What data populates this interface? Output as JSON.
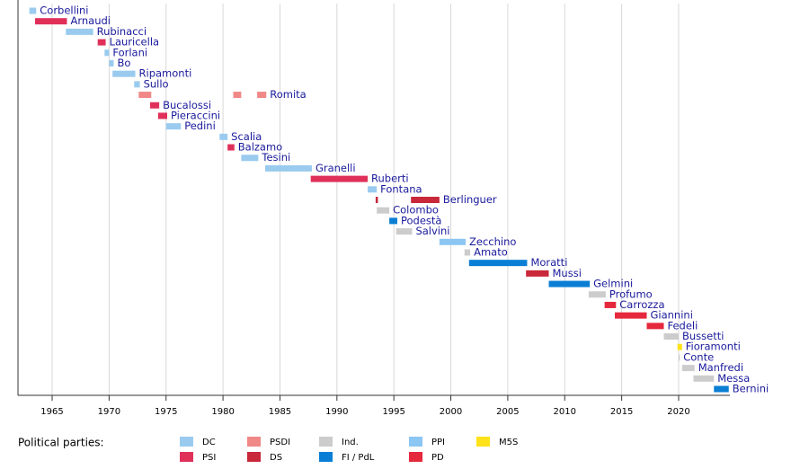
{
  "chart_data": {
    "type": "timeline",
    "xlim": [
      1962,
      2024.5
    ],
    "xticks": [
      1965,
      1970,
      1975,
      1980,
      1985,
      1990,
      1995,
      2000,
      2005,
      2010,
      2015,
      2020
    ],
    "grid": true,
    "legend_title": "Political parties:",
    "parties": [
      {
        "name": "DC",
        "color": "#9acbef"
      },
      {
        "name": "PSI",
        "color": "#e0305a"
      },
      {
        "name": "PSDI",
        "color": "#f08888"
      },
      {
        "name": "DS",
        "color": "#c8283a"
      },
      {
        "name": "Ind.",
        "color": "#cccccc"
      },
      {
        "name": "FI / PdL",
        "color": "#0a7ed4"
      },
      {
        "name": "PPI",
        "color": "#8cc6f2"
      },
      {
        "name": "PD",
        "color": "#e6283c"
      },
      {
        "name": "M5S",
        "color": "#ffe21a"
      }
    ],
    "items": [
      {
        "name": "Corbellini",
        "periods": [
          {
            "start": 1963.0,
            "end": 1963.6,
            "party": "DC"
          }
        ]
      },
      {
        "name": "Arnaudi",
        "periods": [
          {
            "start": 1963.5,
            "end": 1966.3,
            "party": "PSI"
          }
        ]
      },
      {
        "name": "Rubinacci",
        "periods": [
          {
            "start": 1966.2,
            "end": 1968.6,
            "party": "DC"
          }
        ]
      },
      {
        "name": "Lauricella",
        "periods": [
          {
            "start": 1969.0,
            "end": 1969.7,
            "party": "PSI"
          }
        ]
      },
      {
        "name": "Forlani",
        "periods": [
          {
            "start": 1969.6,
            "end": 1970.0,
            "party": "DC"
          }
        ]
      },
      {
        "name": "Bo",
        "periods": [
          {
            "start": 1970.0,
            "end": 1970.4,
            "party": "DC"
          }
        ]
      },
      {
        "name": "Ripamonti",
        "periods": [
          {
            "start": 1970.3,
            "end": 1972.3,
            "party": "DC"
          }
        ]
      },
      {
        "name": "Sullo",
        "periods": [
          {
            "start": 1972.2,
            "end": 1972.7,
            "party": "DC"
          }
        ]
      },
      {
        "name": "Romita",
        "periods": [
          {
            "start": 1972.6,
            "end": 1973.7,
            "party": "PSDI"
          },
          {
            "start": 1980.9,
            "end": 1981.6,
            "party": "PSDI"
          },
          {
            "start": 1983.0,
            "end": 1983.8,
            "party": "PSDI"
          }
        ]
      },
      {
        "name": "Bucalossi",
        "periods": [
          {
            "start": 1973.6,
            "end": 1974.4,
            "party": "PSI"
          }
        ]
      },
      {
        "name": "Pieraccini",
        "periods": [
          {
            "start": 1974.3,
            "end": 1975.1,
            "party": "PSI"
          }
        ]
      },
      {
        "name": "Pedini",
        "periods": [
          {
            "start": 1975.0,
            "end": 1976.3,
            "party": "DC"
          }
        ]
      },
      {
        "name": "Scalia",
        "periods": [
          {
            "start": 1979.7,
            "end": 1980.4,
            "party": "DC"
          }
        ]
      },
      {
        "name": "Balzamo",
        "periods": [
          {
            "start": 1980.4,
            "end": 1981.0,
            "party": "PSI"
          }
        ]
      },
      {
        "name": "Tesini",
        "periods": [
          {
            "start": 1981.6,
            "end": 1983.1,
            "party": "DC"
          }
        ]
      },
      {
        "name": "Granelli",
        "periods": [
          {
            "start": 1983.7,
            "end": 1987.8,
            "party": "DC"
          }
        ]
      },
      {
        "name": "Ruberti",
        "periods": [
          {
            "start": 1987.7,
            "end": 1992.7,
            "party": "PSI"
          }
        ]
      },
      {
        "name": "Fontana",
        "periods": [
          {
            "start": 1992.7,
            "end": 1993.5,
            "party": "DC"
          }
        ]
      },
      {
        "name": "Berlinguer",
        "periods": [
          {
            "start": 1993.4,
            "end": 1993.6,
            "party": "DS"
          },
          {
            "start": 1996.5,
            "end": 1999.0,
            "party": "DS"
          }
        ]
      },
      {
        "name": "Colombo",
        "periods": [
          {
            "start": 1993.5,
            "end": 1994.6,
            "party": "Ind."
          }
        ]
      },
      {
        "name": "Podestà",
        "periods": [
          {
            "start": 1994.6,
            "end": 1995.3,
            "party": "FI / PdL"
          }
        ]
      },
      {
        "name": "Salvini",
        "periods": [
          {
            "start": 1995.2,
            "end": 1996.6,
            "party": "Ind."
          }
        ]
      },
      {
        "name": "Zecchino",
        "periods": [
          {
            "start": 1999.0,
            "end": 2001.3,
            "party": "PPI"
          }
        ]
      },
      {
        "name": "Amato",
        "periods": [
          {
            "start": 2001.2,
            "end": 2001.7,
            "party": "Ind."
          }
        ]
      },
      {
        "name": "Moratti",
        "periods": [
          {
            "start": 2001.6,
            "end": 2006.7,
            "party": "FI / PdL"
          }
        ]
      },
      {
        "name": "Mussi",
        "periods": [
          {
            "start": 2006.6,
            "end": 2008.6,
            "party": "DS"
          }
        ]
      },
      {
        "name": "Gelmini",
        "periods": [
          {
            "start": 2008.6,
            "end": 2012.2,
            "party": "FI / PdL"
          }
        ]
      },
      {
        "name": "Profumo",
        "periods": [
          {
            "start": 2012.1,
            "end": 2013.6,
            "party": "Ind."
          }
        ]
      },
      {
        "name": "Carrozza",
        "periods": [
          {
            "start": 2013.5,
            "end": 2014.5,
            "party": "PD"
          }
        ]
      },
      {
        "name": "Giannini",
        "periods": [
          {
            "start": 2014.4,
            "end": 2017.2,
            "party": "PD"
          }
        ]
      },
      {
        "name": "Fedeli",
        "periods": [
          {
            "start": 2017.2,
            "end": 2018.7,
            "party": "PD"
          }
        ]
      },
      {
        "name": "Bussetti",
        "periods": [
          {
            "start": 2018.7,
            "end": 2020.0,
            "party": "Ind."
          }
        ]
      },
      {
        "name": "Fioramonti",
        "periods": [
          {
            "start": 2019.9,
            "end": 2020.3,
            "party": "M5S"
          }
        ]
      },
      {
        "name": "Conte",
        "periods": [
          {
            "start": 2020.0,
            "end": 2020.1,
            "party": "Ind."
          }
        ]
      },
      {
        "name": "Manfredi",
        "periods": [
          {
            "start": 2020.3,
            "end": 2021.4,
            "party": "Ind."
          }
        ]
      },
      {
        "name": "Messa",
        "periods": [
          {
            "start": 2021.3,
            "end": 2023.1,
            "party": "Ind."
          }
        ]
      },
      {
        "name": "Bernini",
        "periods": [
          {
            "start": 2023.1,
            "end": 2024.4,
            "party": "FI / PdL"
          }
        ]
      }
    ]
  }
}
